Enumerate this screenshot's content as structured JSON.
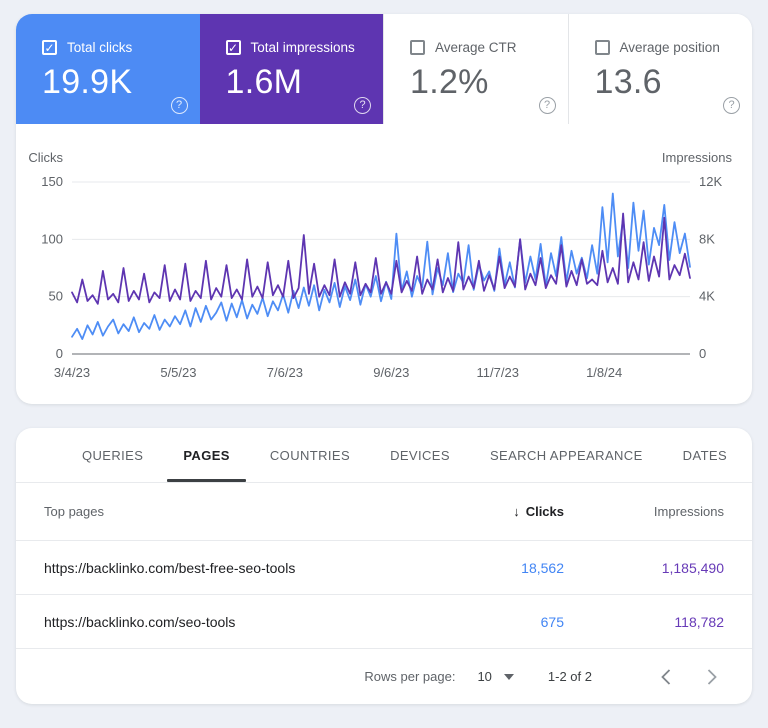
{
  "colors": {
    "clicks_accent": "#4d8bf4",
    "impressions_accent": "#5e35b1",
    "clicks_value_text": "#4285f4",
    "impressions_value_text": "#673ab7",
    "grid_line": "#e7e9ec",
    "axis_line": "#83878c"
  },
  "cards": [
    {
      "label": "Total clicks",
      "value": "19.9K",
      "checked": true,
      "bg": "#4d8bf4"
    },
    {
      "label": "Total impressions",
      "value": "1.6M",
      "checked": true,
      "bg": "#5e35b1"
    },
    {
      "label": "Average CTR",
      "value": "1.2%",
      "checked": false,
      "bg": null
    },
    {
      "label": "Average position",
      "value": "13.6",
      "checked": false,
      "bg": null
    }
  ],
  "chart_data": {
    "type": "line",
    "title": "",
    "grid": true,
    "left_axis": {
      "title": "Clicks",
      "ticks": [
        "0",
        "50",
        "100",
        "150"
      ],
      "tick_values": [
        0,
        50,
        100,
        150
      ],
      "range": [
        0,
        150
      ]
    },
    "right_axis": {
      "title": "Impressions",
      "ticks": [
        "0",
        "4K",
        "8K",
        "12K"
      ],
      "tick_values": [
        0,
        4000,
        8000,
        12000
      ],
      "range": [
        0,
        12000
      ]
    },
    "x_tick_labels": [
      "3/4/23",
      "5/5/23",
      "7/6/23",
      "9/6/23",
      "11/7/23",
      "1/8/24"
    ],
    "x_tick_days": [
      0,
      62,
      124,
      186,
      248,
      310
    ],
    "total_days": 360,
    "sampling_note": "daily series Mar 2023 - Feb 2024, sampled every 3 days (values estimated from pixels)",
    "series": [
      {
        "name": "Clicks",
        "axis": "left",
        "color": "#4e8df5",
        "values": [
          15,
          22,
          13,
          25,
          17,
          28,
          16,
          24,
          30,
          18,
          26,
          20,
          32,
          19,
          27,
          22,
          34,
          21,
          30,
          24,
          33,
          26,
          38,
          24,
          40,
          28,
          42,
          30,
          36,
          45,
          29,
          44,
          32,
          47,
          31,
          43,
          35,
          49,
          33,
          46,
          38,
          52,
          36,
          55,
          40,
          58,
          42,
          60,
          38,
          56,
          45,
          62,
          41,
          59,
          47,
          65,
          43,
          61,
          50,
          68,
          46,
          63,
          48,
          105,
          55,
          72,
          50,
          68,
          58,
          98,
          52,
          75,
          60,
          88,
          54,
          70,
          62,
          95,
          56,
          78,
          64,
          72,
          55,
          92,
          60,
          80,
          58,
          100,
          62,
          85,
          65,
          96,
          59,
          88,
          68,
          102,
          63,
          90,
          70,
          84,
          66,
          95,
          70,
          128,
          80,
          140,
          85,
          118,
          75,
          132,
          90,
          125,
          78,
          110,
          95,
          130,
          82,
          115,
          88,
          105,
          76
        ]
      },
      {
        "name": "Impressions",
        "axis": "right",
        "color": "#5e35b1",
        "values": [
          4300,
          3600,
          5200,
          3700,
          4100,
          3500,
          5800,
          3800,
          4200,
          3600,
          6000,
          3700,
          4400,
          3800,
          5600,
          3600,
          4300,
          3900,
          6200,
          3700,
          4500,
          3800,
          6300,
          3700,
          4400,
          3900,
          6500,
          3800,
          4600,
          4000,
          6200,
          3900,
          4500,
          3800,
          6600,
          4000,
          4700,
          3900,
          6400,
          4100,
          4800,
          4000,
          6500,
          3900,
          4600,
          8300,
          4200,
          6300,
          4000,
          4800,
          4100,
          6600,
          4000,
          5000,
          4200,
          6400,
          4100,
          4900,
          4300,
          6700,
          4200,
          5000,
          4200,
          6500,
          4300,
          5100,
          4400,
          6800,
          4200,
          5200,
          4500,
          6600,
          4300,
          5300,
          4400,
          7800,
          4500,
          5400,
          4600,
          6500,
          4400,
          5500,
          4500,
          6800,
          4600,
          5400,
          4700,
          8000,
          4500,
          5600,
          4800,
          6700,
          4600,
          5500,
          4900,
          7600,
          4700,
          5800,
          4800,
          6600,
          4900,
          5200,
          4800,
          7200,
          5000,
          6000,
          4900,
          9800,
          5000,
          6400,
          5200,
          7800,
          5100,
          6800,
          5400,
          9500,
          5200,
          6200,
          5500,
          7000,
          5300
        ]
      }
    ]
  },
  "table": {
    "tabs": [
      {
        "label": "QUERIES",
        "active": false
      },
      {
        "label": "PAGES",
        "active": true
      },
      {
        "label": "COUNTRIES",
        "active": false
      },
      {
        "label": "DEVICES",
        "active": false
      },
      {
        "label": "SEARCH APPEARANCE",
        "active": false
      },
      {
        "label": "DATES",
        "active": false
      }
    ],
    "columns": {
      "primary": "Top pages",
      "clicks": "Clicks",
      "impressions": "Impressions"
    },
    "sort_icon": "↓",
    "rows": [
      {
        "url": "https://backlinko.com/best-free-seo-tools",
        "clicks": "18,562",
        "impressions": "1,185,490"
      },
      {
        "url": "https://backlinko.com/seo-tools",
        "clicks": "675",
        "impressions": "118,782"
      }
    ],
    "footer": {
      "rows_per_page_label": "Rows per page:",
      "rows_per_page_value": "10",
      "range_label": "1-2 of 2"
    }
  },
  "icons": {
    "help": "?",
    "check": "✓"
  }
}
